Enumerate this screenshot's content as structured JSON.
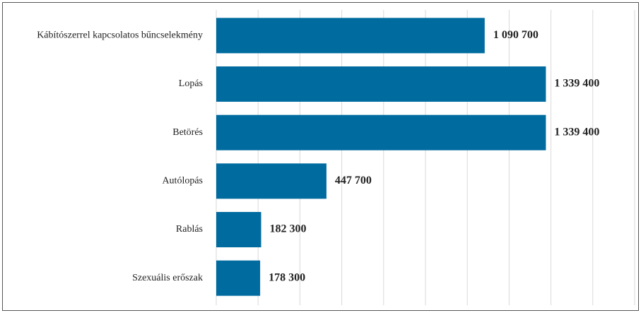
{
  "chart_data": {
    "type": "bar",
    "orientation": "horizontal",
    "categories": [
      "Kábítószerrel kapcsolatos bűncselekmény",
      "Lopás",
      "Betörés",
      "Autólopás",
      "Rablás",
      "Szexuális erőszak"
    ],
    "values": [
      1090700,
      1339400,
      1339400,
      447700,
      182300,
      178300
    ],
    "value_labels": [
      "1 090 700",
      "1 339 400",
      "1 339 400",
      "447 700",
      "182 300",
      "178 300"
    ],
    "color": "#006b9f",
    "xlim": [
      0,
      1700000
    ],
    "grid": true
  }
}
